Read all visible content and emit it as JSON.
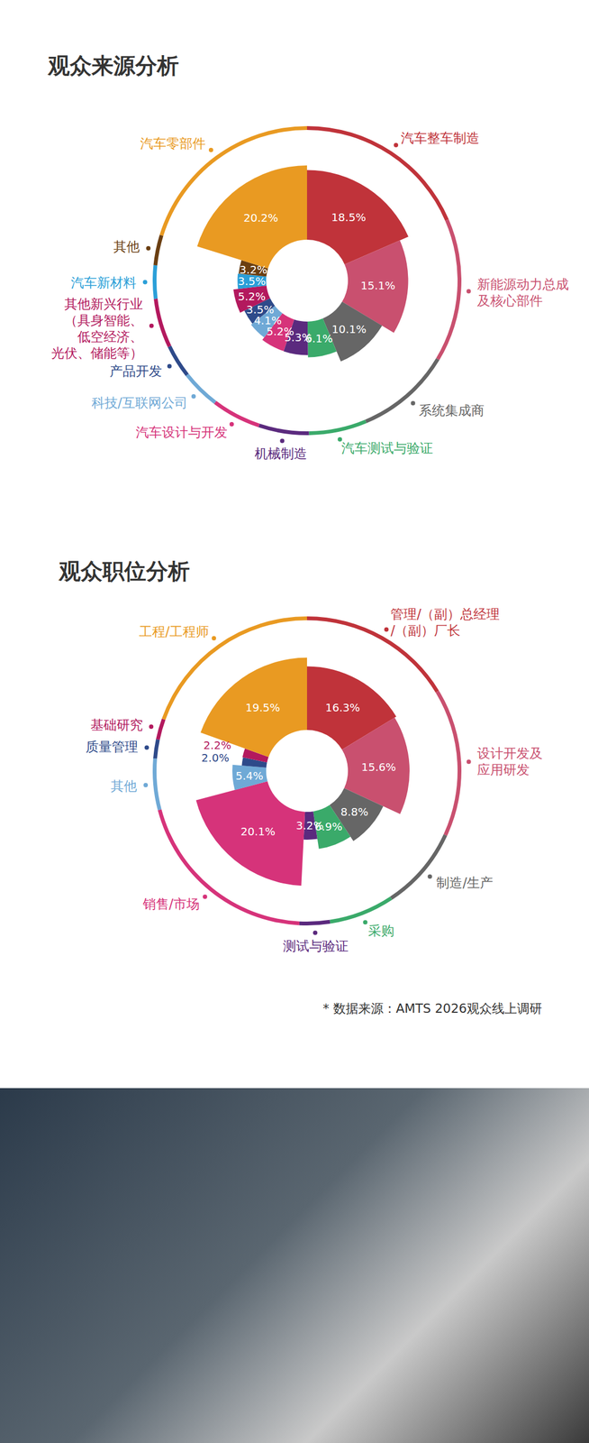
{
  "chart_data": [
    {
      "type": "pie",
      "title": "观众来源分析",
      "categories": [
        "汽车整车制造",
        "新能源动力总成\n及核心部件",
        "系统集成商",
        "汽车测试与验证",
        "机械制造",
        "汽车设计与开发",
        "科技/互联网公司",
        "产品开发",
        "其他新兴行业\n（具身智能、\n低空经济、\n光伏、储能等）",
        "汽车新材料",
        "其他",
        "汽车零部件"
      ],
      "values": [
        18.5,
        15.1,
        10.1,
        6.1,
        5.3,
        5.2,
        4.1,
        3.5,
        5.2,
        3.5,
        3.2,
        20.2
      ],
      "value_labels": [
        "18.5%",
        "15.1%",
        "10.1%",
        "6.1%",
        "5.3%",
        "5.2%",
        "4.1%",
        "3.5%",
        "5.2%",
        "3.5%",
        "3.2%",
        "20.2%"
      ],
      "colors": [
        "#c0333a",
        "#c9506f",
        "#666666",
        "#3aaa6a",
        "#5b2a7e",
        "#d6337a",
        "#6fa9d6",
        "#2e4a8a",
        "#b3195e",
        "#2a9fd8",
        "#6b3f12",
        "#e99a22"
      ],
      "data_labels": true
    },
    {
      "type": "pie",
      "title": "观众职位分析",
      "categories": [
        "管理/（副）总经理\n/（副）厂长",
        "设计开发及\n应用研发",
        "制造/生产",
        "采购",
        "测试与验证",
        "销售/市场",
        "其他",
        "质量管理",
        "基础研究",
        "工程/工程师"
      ],
      "values": [
        16.3,
        15.6,
        8.8,
        6.9,
        3.2,
        20.1,
        5.4,
        2.0,
        2.2,
        19.5
      ],
      "value_labels": [
        "16.3%",
        "15.6%",
        "8.8%",
        "6.9%",
        "3.2%",
        "20.1%",
        "5.4%",
        "2.0%",
        "2.2%",
        "19.5%"
      ],
      "colors": [
        "#c0333a",
        "#c9506f",
        "#666666",
        "#3aaa6a",
        "#5b2a7e",
        "#d6337a",
        "#6fa9d6",
        "#2e4a8a",
        "#b3195e",
        "#e99a22"
      ],
      "data_labels": true
    }
  ],
  "source_note": "* 数据来源：AMTS 2026观众线上调研"
}
